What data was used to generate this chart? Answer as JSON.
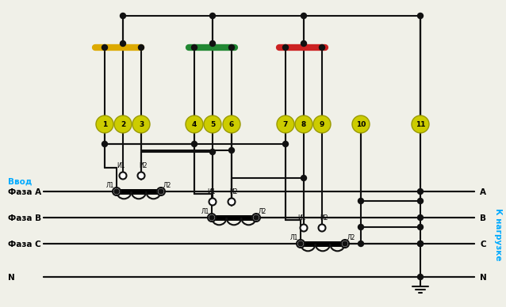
{
  "bg_color": "#f0f0e8",
  "title": "",
  "fig_width": 6.38,
  "fig_height": 3.88,
  "dpi": 100,
  "phase_labels_left": [
    "Ввод",
    "Фаза А",
    "Фаза В",
    "Фаза С",
    "N"
  ],
  "phase_labels_right": [
    "А",
    "В",
    "С",
    "N"
  ],
  "label_vvod_color": "#00aaff",
  "label_phase_color": "#000000",
  "label_right_color": "#000000",
  "k_nagruzke_color": "#00aaff",
  "terminal_numbers": [
    "1",
    "2",
    "3",
    "4",
    "5",
    "6",
    "7",
    "8",
    "9",
    "10",
    "11"
  ],
  "terminal_color": "#cccc00",
  "terminal_text_color": "#000000",
  "bus_colors": [
    "#ddaa00",
    "#228833",
    "#cc2222"
  ],
  "line_color": "#111111",
  "thick_line_color": "#111111",
  "dot_color": "#111111"
}
